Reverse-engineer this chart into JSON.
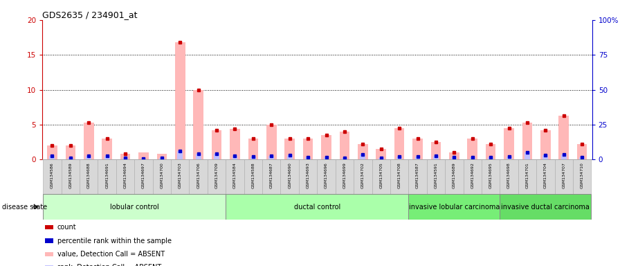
{
  "title": "GDS2635 / 234901_at",
  "samples": [
    "GSM134586",
    "GSM134589",
    "GSM134688",
    "GSM134691",
    "GSM134694",
    "GSM134697",
    "GSM134700",
    "GSM134703",
    "GSM134706",
    "GSM134709",
    "GSM134584",
    "GSM134588",
    "GSM134687",
    "GSM134690",
    "GSM134693",
    "GSM134696",
    "GSM134699",
    "GSM134702",
    "GSM134705",
    "GSM134708",
    "GSM134587",
    "GSM134591",
    "GSM134689",
    "GSM134692",
    "GSM134695",
    "GSM134698",
    "GSM134701",
    "GSM134704",
    "GSM134707",
    "GSM134710"
  ],
  "values_absent": [
    2.0,
    2.0,
    5.3,
    3.0,
    0.8,
    1.0,
    0.8,
    16.8,
    10.0,
    4.2,
    4.4,
    3.0,
    5.0,
    3.0,
    3.0,
    3.5,
    4.0,
    2.2,
    1.5,
    4.5,
    3.0,
    2.5,
    1.0,
    3.0,
    2.2,
    4.5,
    5.3,
    4.2,
    6.3,
    2.2
  ],
  "ranks_absent": [
    2.5,
    1.3,
    2.5,
    2.9,
    1.0,
    0.9,
    1.0,
    6.2,
    4.2,
    4.0,
    2.8,
    2.0,
    2.5,
    3.0,
    1.6,
    1.5,
    1.4,
    3.5,
    1.2,
    2.0,
    2.2,
    2.8,
    1.5,
    1.8,
    1.5,
    2.2,
    5.0,
    3.0,
    3.5,
    1.5
  ],
  "count_present": [
    true,
    true,
    true,
    true,
    true,
    false,
    false,
    true,
    true,
    true,
    true,
    true,
    true,
    true,
    true,
    true,
    true,
    true,
    true,
    true,
    true,
    true,
    true,
    true,
    true,
    true,
    true,
    true,
    true,
    true
  ],
  "rank_present": [
    true,
    true,
    true,
    true,
    true,
    true,
    true,
    true,
    true,
    true,
    true,
    true,
    true,
    true,
    true,
    true,
    true,
    true,
    true,
    true,
    true,
    true,
    true,
    true,
    true,
    true,
    true,
    true,
    true,
    true
  ],
  "groups": [
    {
      "label": "lobular control",
      "start": 0,
      "end": 9,
      "color": "#ccffcc"
    },
    {
      "label": "ductal control",
      "start": 10,
      "end": 19,
      "color": "#aaffaa"
    },
    {
      "label": "invasive lobular carcinoma",
      "start": 20,
      "end": 24,
      "color": "#77ee77"
    },
    {
      "label": "invasive ductal carcinoma",
      "start": 25,
      "end": 29,
      "color": "#66dd66"
    }
  ],
  "ylim_left": [
    0,
    20
  ],
  "ylim_right": [
    0,
    100
  ],
  "yticks_left": [
    0,
    5,
    10,
    15,
    20
  ],
  "yticks_right": [
    0,
    25,
    50,
    75,
    100
  ],
  "ytick_right_labels": [
    "0",
    "25",
    "50",
    "75",
    "100%"
  ],
  "color_value_absent": "#ffb8b8",
  "color_rank_absent": "#c0c0ff",
  "color_count_dot": "#cc0000",
  "color_percentile_dot": "#0000cc",
  "color_left_axis": "#cc0000",
  "color_right_axis": "#0000cc",
  "tick_box_color": "#d8d8d8",
  "tick_box_edge": "#aaaaaa",
  "grid_color": "#000000"
}
